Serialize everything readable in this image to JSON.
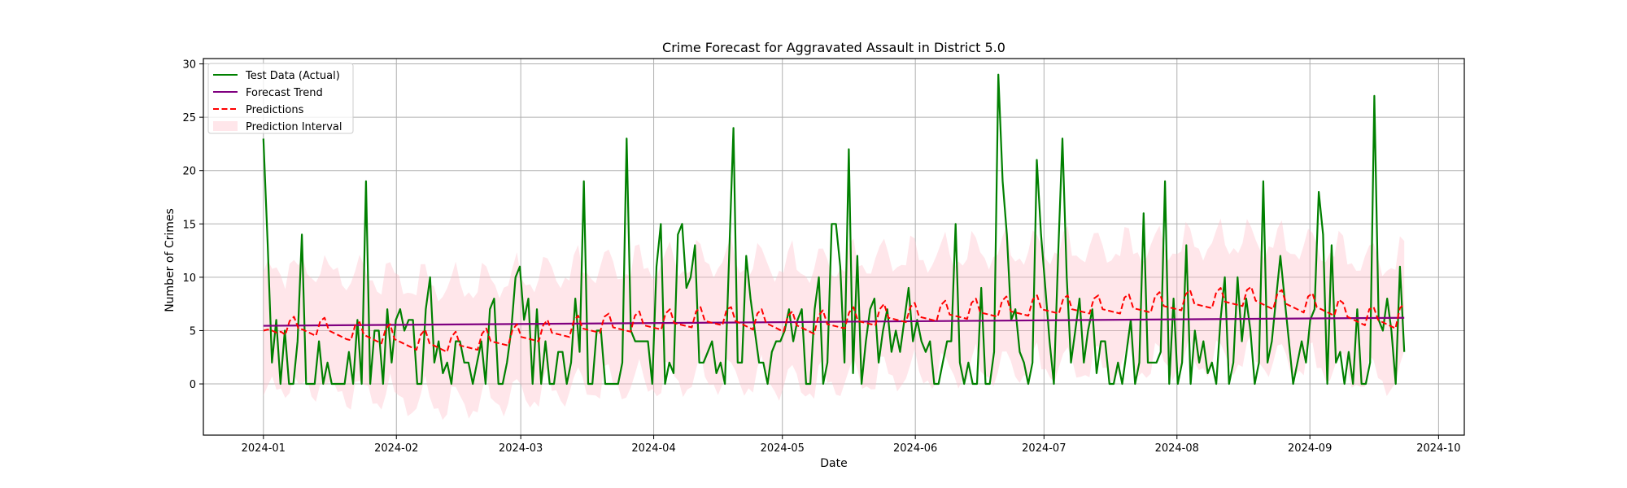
{
  "chart_data": {
    "type": "line",
    "title": "Crime Forecast for Aggravated Assault in District 5.0",
    "xlabel": "Date",
    "ylabel": "Number of Crimes",
    "x_range": [
      "2023-12-18",
      "2024-10-07"
    ],
    "ylim": [
      -4.8,
      30.5
    ],
    "grid": true,
    "legend_position": "top-left",
    "x_ticks": [
      "2024-01",
      "2024-02",
      "2024-03",
      "2024-04",
      "2024-05",
      "2024-06",
      "2024-07",
      "2024-08",
      "2024-09",
      "2024-10"
    ],
    "y_ticks": [
      0,
      5,
      10,
      15,
      20,
      25,
      30
    ],
    "x_start": "2024-01-01",
    "x_end": "2024-09-23",
    "series": [
      {
        "name": "Test Data (Actual)",
        "color": "#008000",
        "style": "solid",
        "values": [
          23,
          13,
          2,
          6,
          0,
          5,
          0,
          0,
          4,
          14,
          0,
          0,
          0,
          4,
          0,
          2,
          0,
          0,
          0,
          0,
          3,
          0,
          6,
          0,
          19,
          0,
          5,
          5,
          0,
          7,
          2,
          6,
          7,
          5,
          6,
          6,
          0,
          0,
          7,
          10,
          2,
          4,
          1,
          2,
          0,
          4,
          4,
          2,
          2,
          0,
          2,
          4,
          0,
          7,
          8,
          0,
          0,
          2,
          5,
          10,
          11,
          6,
          8,
          0,
          7,
          0,
          4,
          0,
          0,
          3,
          3,
          0,
          2,
          8,
          3,
          19,
          0,
          0,
          5,
          5,
          0,
          0,
          0,
          0,
          2,
          23,
          5,
          4,
          4,
          4,
          4,
          0,
          11,
          15,
          0,
          2,
          1,
          14,
          15,
          9,
          10,
          13,
          2,
          2,
          3,
          4,
          1,
          2,
          0,
          12,
          24,
          2,
          2,
          12,
          8,
          5,
          2,
          2,
          0,
          3,
          4,
          4,
          5,
          7,
          4,
          6,
          7,
          0,
          0,
          7,
          10,
          0,
          2,
          15,
          15,
          11,
          2,
          22,
          1,
          12,
          0,
          4,
          7,
          8,
          2,
          5,
          7,
          3,
          5,
          3,
          6,
          9,
          4,
          6,
          4,
          3,
          4,
          0,
          0,
          2,
          4,
          4,
          15,
          2,
          0,
          2,
          0,
          0,
          9,
          0,
          0,
          3,
          29,
          19,
          14,
          6,
          7,
          3,
          2,
          0,
          2,
          21,
          14,
          9,
          4,
          0,
          12,
          23,
          10,
          2,
          5,
          8,
          2,
          5,
          7,
          1,
          4,
          4,
          0,
          0,
          2,
          0,
          3,
          6,
          0,
          2,
          16,
          2,
          2,
          2,
          3,
          19,
          0,
          8,
          0,
          2,
          13,
          0,
          5,
          2,
          4,
          1,
          2,
          0,
          6,
          10,
          0,
          2,
          10,
          4,
          8,
          5,
          0,
          2,
          19,
          2,
          4,
          8,
          12,
          8,
          4,
          0,
          2,
          4,
          2,
          6,
          7,
          18,
          14,
          0,
          13,
          2,
          3,
          0,
          3,
          0,
          7,
          0,
          0,
          2,
          27,
          6,
          5,
          8,
          5,
          0,
          11,
          3
        ]
      },
      {
        "name": "Forecast Trend",
        "color": "#800080",
        "style": "solid",
        "values_start": 5.45,
        "values_end": 6.2
      },
      {
        "name": "Predictions",
        "color": "#ff0000",
        "style": "dashed",
        "values": [
          5.0,
          5.1,
          5.0,
          4.8,
          4.9,
          4.6,
          5.9,
          6.3,
          5.2,
          5.1,
          4.9,
          4.7,
          4.5,
          5.9,
          6.2,
          5.0,
          4.8,
          4.6,
          4.4,
          4.2,
          4.1,
          5.5,
          5.8,
          4.6,
          4.4,
          4.2,
          4.0,
          3.8,
          5.2,
          5.6,
          4.2,
          4.0,
          3.8,
          3.6,
          3.4,
          3.2,
          4.6,
          5.1,
          3.8,
          3.6,
          3.4,
          3.2,
          3.0,
          4.4,
          4.9,
          3.6,
          3.5,
          3.4,
          3.3,
          3.2,
          4.7,
          5.2,
          4.0,
          3.9,
          3.8,
          3.7,
          3.6,
          5.1,
          5.6,
          4.4,
          4.3,
          4.2,
          4.1,
          4.0,
          5.5,
          6.0,
          4.8,
          4.7,
          4.6,
          4.5,
          4.4,
          5.9,
          6.4,
          5.2,
          5.1,
          5.0,
          4.9,
          4.8,
          6.3,
          6.6,
          5.3,
          5.2,
          5.1,
          5.0,
          4.9,
          6.4,
          6.8,
          5.5,
          5.4,
          5.3,
          5.2,
          5.1,
          6.6,
          7.0,
          5.7,
          5.6,
          5.5,
          5.4,
          5.3,
          6.8,
          7.2,
          5.9,
          5.8,
          5.7,
          5.6,
          5.5,
          7.0,
          7.2,
          5.9,
          5.7,
          5.5,
          5.3,
          5.1,
          6.6,
          7.0,
          5.7,
          5.5,
          5.3,
          5.1,
          4.9,
          6.4,
          6.8,
          5.5,
          5.3,
          5.1,
          4.9,
          4.7,
          6.4,
          6.9,
          5.6,
          5.5,
          5.4,
          5.3,
          5.2,
          6.7,
          7.2,
          5.9,
          5.8,
          5.7,
          5.6,
          5.5,
          7.0,
          7.5,
          6.2,
          6.1,
          6.0,
          5.9,
          5.8,
          7.2,
          7.6,
          6.3,
          6.2,
          6.1,
          6.0,
          5.9,
          7.4,
          7.8,
          6.5,
          6.4,
          6.3,
          6.2,
          6.1,
          7.6,
          8.0,
          6.7,
          6.6,
          6.5,
          6.4,
          6.3,
          7.8,
          8.2,
          6.8,
          6.7,
          6.6,
          6.5,
          6.4,
          7.9,
          8.3,
          7.0,
          6.9,
          6.8,
          6.7,
          6.6,
          8.0,
          8.3,
          7.0,
          6.9,
          6.8,
          6.7,
          6.6,
          8.0,
          8.3,
          7.0,
          6.9,
          6.8,
          6.7,
          6.6,
          8.1,
          8.4,
          7.1,
          7.0,
          6.9,
          6.8,
          6.7,
          8.2,
          8.6,
          7.3,
          7.2,
          7.1,
          7.0,
          6.9,
          8.4,
          8.8,
          7.5,
          7.4,
          7.3,
          7.2,
          7.1,
          8.6,
          9.0,
          7.7,
          7.6,
          7.5,
          7.4,
          7.3,
          8.8,
          9.1,
          7.8,
          7.6,
          7.4,
          7.2,
          7.0,
          8.5,
          8.8,
          7.5,
          7.3,
          7.1,
          6.9,
          6.7,
          8.2,
          8.5,
          7.2,
          7.0,
          6.8,
          6.6,
          6.4,
          7.9,
          7.6,
          6.3,
          6.1,
          5.9,
          5.7,
          5.5,
          7.0,
          7.2,
          6.0,
          5.8,
          5.6,
          5.4,
          5.2,
          7.1,
          7.5
        ]
      }
    ],
    "interval": {
      "name": "Prediction Interval",
      "color": "#ffc0cb",
      "half_width": 5.5
    }
  }
}
